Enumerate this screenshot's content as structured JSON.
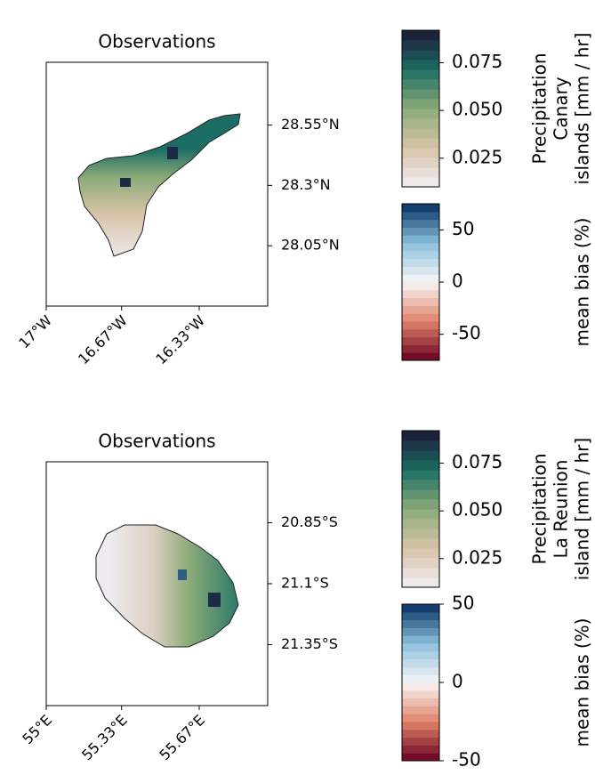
{
  "chart_data": [
    {
      "type": "map",
      "title": "Observations",
      "xlim": [
        -17,
        -16.03
      ],
      "ylim": [
        27.8,
        28.81
      ],
      "xticks": [
        {
          "value": -17,
          "label": "17°W"
        },
        {
          "value": -16.67,
          "label": "16.67°W"
        },
        {
          "value": -16.33,
          "label": "16.33°W"
        }
      ],
      "yticks": [
        {
          "value": 28.55,
          "label": "28.55°N"
        },
        {
          "value": 28.3,
          "label": "28.3°N"
        },
        {
          "value": 28.05,
          "label": "28.05°N"
        }
      ],
      "colorbars": [
        {
          "label": [
            "Precipitation",
            "Canary",
            "islands [mm / hr]"
          ],
          "clim": [
            0.01,
            0.092
          ],
          "levels": 16,
          "colors": [
            "#f1eef3",
            "#d7c3a8",
            "#8cab78",
            "#1c6e64",
            "#1d1735"
          ],
          "ticks": [
            {
              "value": 0.075,
              "label": "0.075"
            },
            {
              "value": 0.05,
              "label": "0.050"
            },
            {
              "value": 0.025,
              "label": "0.025"
            }
          ]
        },
        {
          "label": [
            "mean bias (%)"
          ],
          "clim": [
            -75,
            75
          ],
          "levels": 20,
          "colors": [
            "#67001f",
            "#e0826a",
            "#f7f6f5",
            "#8cc0dd",
            "#053061"
          ],
          "ticks": [
            50,
            0,
            -50
          ]
        }
      ]
    },
    {
      "type": "map",
      "title": "Observations",
      "xlim": [
        55,
        55.97
      ],
      "ylim": [
        -21.6,
        -20.6
      ],
      "xticks": [
        {
          "value": 55,
          "label": "55°E"
        },
        {
          "value": 55.33,
          "label": "55.33°E"
        },
        {
          "value": 55.67,
          "label": "55.67°E"
        }
      ],
      "yticks": [
        {
          "value": -20.85,
          "label": "20.85°S"
        },
        {
          "value": -21.1,
          "label": "21.1°S"
        },
        {
          "value": -21.35,
          "label": "21.35°S"
        }
      ],
      "colorbars": [
        {
          "label": [
            "Precipitation",
            "La Reunion",
            "island [mm / hr]"
          ],
          "clim": [
            0.01,
            0.092
          ],
          "levels": 16,
          "colors": [
            "#f1eef3",
            "#d7c3a8",
            "#8cab78",
            "#1c6e64",
            "#1d1735"
          ],
          "ticks": [
            {
              "value": 0.075,
              "label": "0.075"
            },
            {
              "value": 0.05,
              "label": "0.050"
            },
            {
              "value": 0.025,
              "label": "0.025"
            }
          ]
        },
        {
          "label": [
            "mean bias (%)"
          ],
          "clim": [
            -50,
            50
          ],
          "levels": 20,
          "colors": [
            "#67001f",
            "#e0826a",
            "#f7f6f5",
            "#8cc0dd",
            "#053061"
          ],
          "ticks": [
            50,
            0,
            -50
          ]
        }
      ]
    }
  ]
}
